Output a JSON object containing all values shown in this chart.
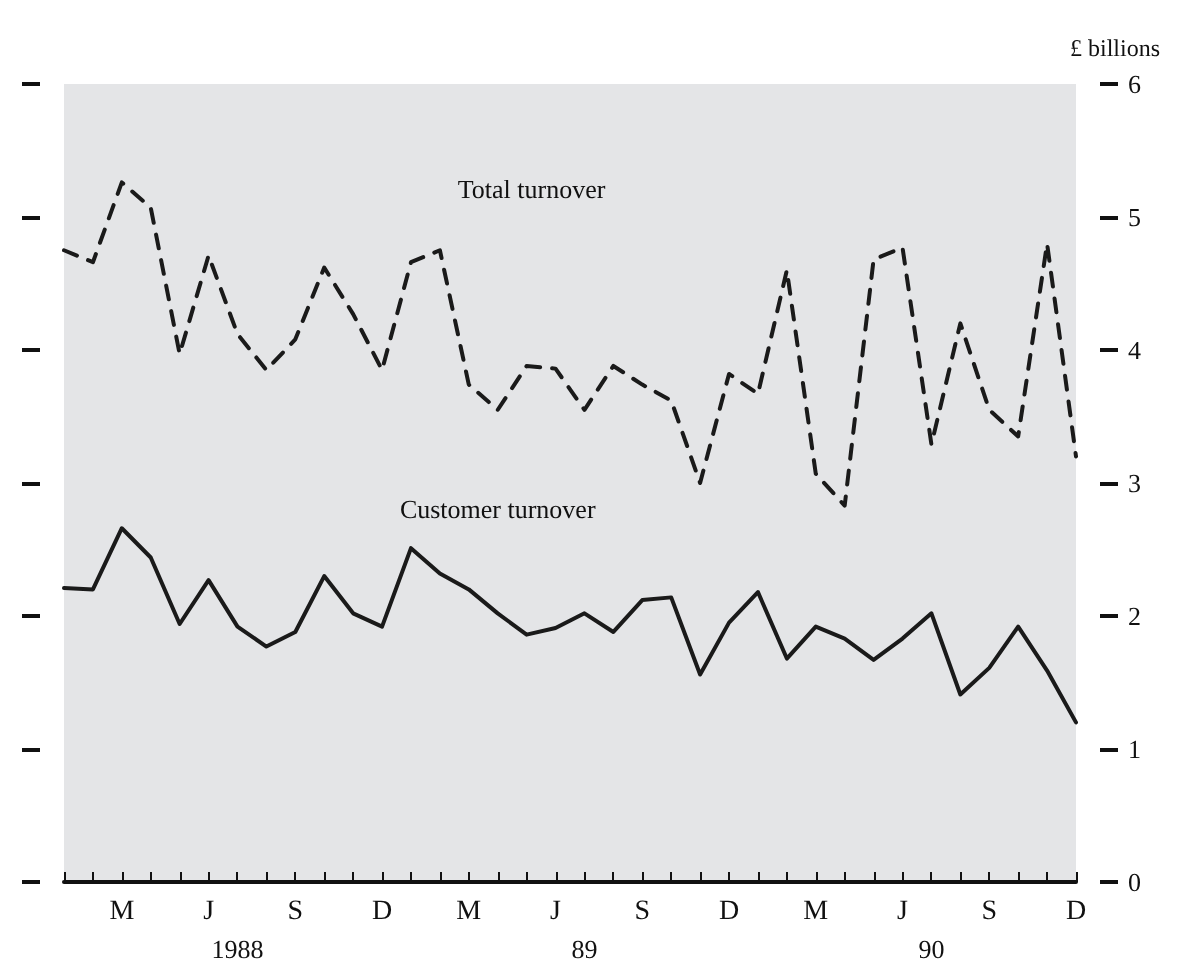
{
  "chart_data": {
    "type": "line",
    "ylabel": "£ billions",
    "categories": [
      null,
      null,
      "M",
      null,
      null,
      "J",
      null,
      null,
      "S",
      null,
      null,
      "D",
      null,
      null,
      "M",
      null,
      null,
      "J",
      null,
      null,
      "S",
      null,
      null,
      "D",
      null,
      null,
      "M",
      null,
      null,
      "J",
      null,
      null,
      "S",
      null,
      null,
      "D"
    ],
    "annotations": [
      "1988",
      "89",
      "90"
    ],
    "series": [
      {
        "name": "Total turnover",
        "color": "#1a1a1a",
        "line_style": "dashed",
        "values": [
          4.75,
          4.66,
          5.26,
          5.07,
          3.97,
          4.71,
          4.12,
          3.85,
          4.08,
          4.62,
          4.27,
          3.85,
          4.66,
          4.75,
          3.74,
          3.55,
          3.88,
          3.86,
          3.55,
          3.88,
          3.74,
          3.62,
          3.0,
          3.82,
          3.67,
          4.6,
          3.07,
          2.83,
          4.68,
          4.77,
          3.29,
          4.2,
          3.55,
          3.35,
          4.8,
          3.2
        ]
      },
      {
        "name": "Customer turnover",
        "color": "#1a1a1a",
        "line_style": "solid",
        "values": [
          2.21,
          2.2,
          2.66,
          2.44,
          1.94,
          2.27,
          1.92,
          1.77,
          1.88,
          2.3,
          2.02,
          1.92,
          2.51,
          2.32,
          2.2,
          2.02,
          1.86,
          1.91,
          2.02,
          1.88,
          2.12,
          2.14,
          1.56,
          1.95,
          2.18,
          1.68,
          1.92,
          1.83,
          1.67,
          1.83,
          2.02,
          1.41,
          1.61,
          1.92,
          1.59,
          1.2
        ]
      }
    ],
    "ylim": [
      0,
      6
    ],
    "yticks": [
      0,
      1,
      2,
      3,
      4,
      5,
      6
    ],
    "grid": false,
    "legend": false,
    "marker": "none",
    "tick_labels": "xy"
  }
}
